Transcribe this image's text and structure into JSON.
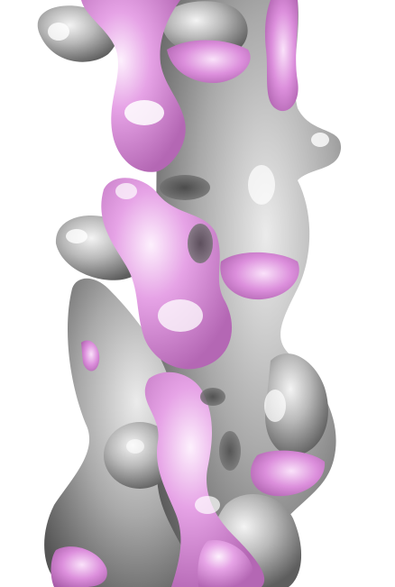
{
  "image": {
    "kind": "3D molecular density surface rendering",
    "background_color": "#ffffff",
    "colors": {
      "outer_surface": "#a8a8a8",
      "outer_surface_highlight": "#f2f2f2",
      "outer_surface_shadow": "#5e5e5e",
      "inner_surface": "#e39be3",
      "inner_surface_highlight": "#fbe6fb",
      "inner_surface_shadow": "#b05fb0"
    }
  }
}
